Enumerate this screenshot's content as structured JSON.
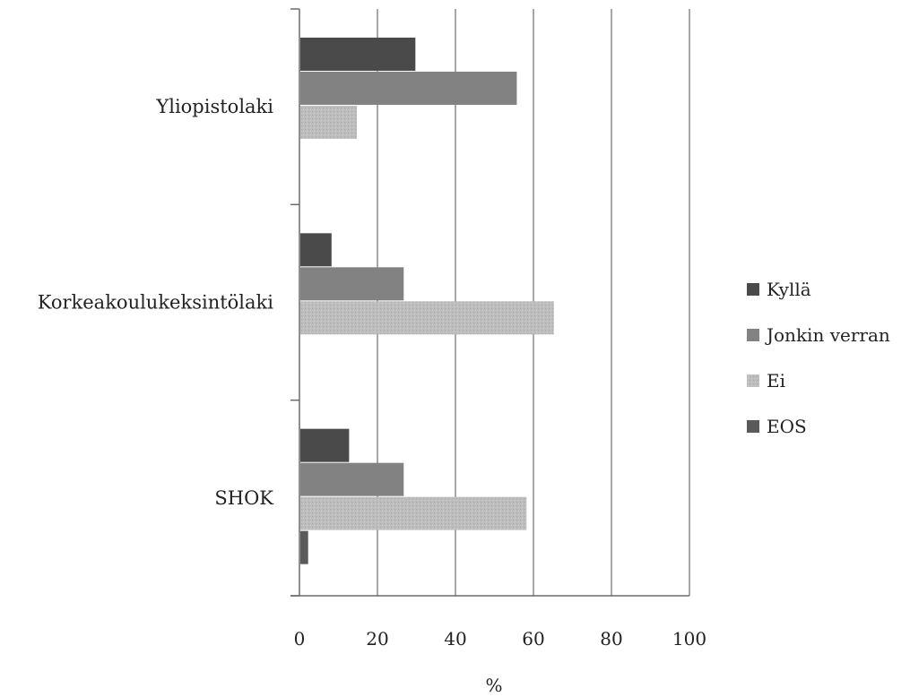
{
  "chart_data": {
    "type": "bar",
    "orientation": "horizontal",
    "categories": [
      "Yliopistolaki",
      "Korkeakoulukeksintölaki",
      "SHOK"
    ],
    "series": [
      {
        "name": "Kyllä",
        "values": [
          29.5,
          8,
          12.5
        ],
        "color": "#4a4a4a"
      },
      {
        "name": "Jonkin verran",
        "values": [
          55.5,
          26.5,
          26.5
        ],
        "color": "#828282"
      },
      {
        "name": "Ei",
        "values": [
          14.5,
          65,
          58
        ],
        "color": "#bdbdbd"
      },
      {
        "name": "EOS",
        "values": [
          0,
          0,
          2
        ],
        "color": "#5a5a5a"
      }
    ],
    "xlabel": "%",
    "ylabel": "",
    "xlim": [
      0,
      100
    ],
    "xticks": [
      "0",
      "20",
      "40",
      "60",
      "80",
      "100"
    ],
    "grid": "vertical",
    "legend_position": "right"
  }
}
